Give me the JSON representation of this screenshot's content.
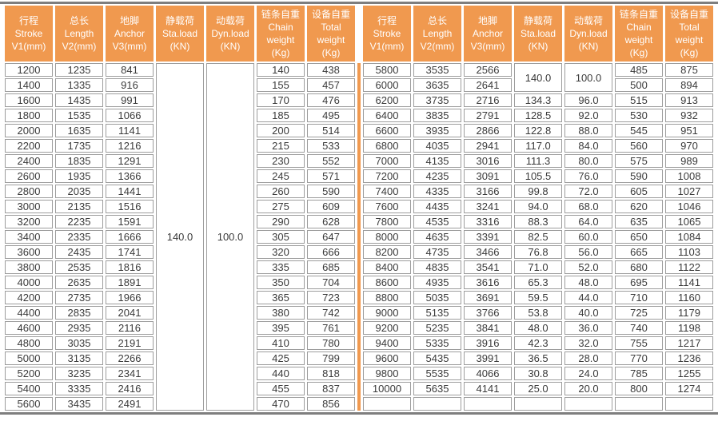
{
  "colors": {
    "header_bg": "#F0994F",
    "divider": "#F0994F",
    "cell_border": "#9D9D9D",
    "rule": "#7E7E7E",
    "cell_text": "#3A3A3A",
    "header_text": "#FFFFFF"
  },
  "headers": [
    {
      "id": "stroke",
      "lines": [
        "行程",
        "Stroke",
        "V1(mm)"
      ]
    },
    {
      "id": "length",
      "lines": [
        "总长",
        "Length",
        "V2(mm)"
      ]
    },
    {
      "id": "anchor",
      "lines": [
        "地脚",
        "Anchor",
        "V3(mm)"
      ]
    },
    {
      "id": "sta-load",
      "lines": [
        "静载荷",
        "Sta.load",
        "(KN)"
      ]
    },
    {
      "id": "dyn-load",
      "lines": [
        "动载荷",
        "Dyn.load",
        "(KN)"
      ]
    },
    {
      "id": "chain-weight",
      "lines": [
        "链条自重",
        "Chain",
        "weight",
        "(Kg)"
      ]
    },
    {
      "id": "total-weight",
      "lines": [
        "设备自重",
        "Total",
        "weight",
        "(Kg)"
      ]
    }
  ],
  "tables": {
    "left": {
      "merges": [
        {
          "row": 0,
          "col": 3,
          "rowspan": 23,
          "value": "140.0"
        },
        {
          "row": 0,
          "col": 4,
          "rowspan": 23,
          "value": "100.0"
        }
      ],
      "rows": [
        [
          "1200",
          "1235",
          "841",
          null,
          null,
          "140",
          "438"
        ],
        [
          "1400",
          "1335",
          "916",
          null,
          null,
          "155",
          "457"
        ],
        [
          "1600",
          "1435",
          "991",
          null,
          null,
          "170",
          "476"
        ],
        [
          "1800",
          "1535",
          "1066",
          null,
          null,
          "185",
          "495"
        ],
        [
          "2000",
          "1635",
          "1141",
          null,
          null,
          "200",
          "514"
        ],
        [
          "2200",
          "1735",
          "1216",
          null,
          null,
          "215",
          "533"
        ],
        [
          "2400",
          "1835",
          "1291",
          null,
          null,
          "230",
          "552"
        ],
        [
          "2600",
          "1935",
          "1366",
          null,
          null,
          "245",
          "571"
        ],
        [
          "2800",
          "2035",
          "1441",
          null,
          null,
          "260",
          "590"
        ],
        [
          "3000",
          "2135",
          "1516",
          null,
          null,
          "275",
          "609"
        ],
        [
          "3200",
          "2235",
          "1591",
          null,
          null,
          "290",
          "628"
        ],
        [
          "3400",
          "2335",
          "1666",
          null,
          null,
          "305",
          "647"
        ],
        [
          "3600",
          "2435",
          "1741",
          null,
          null,
          "320",
          "666"
        ],
        [
          "3800",
          "2535",
          "1816",
          null,
          null,
          "335",
          "685"
        ],
        [
          "4000",
          "2635",
          "1891",
          null,
          null,
          "350",
          "704"
        ],
        [
          "4200",
          "2735",
          "1966",
          null,
          null,
          "365",
          "723"
        ],
        [
          "4400",
          "2835",
          "2041",
          null,
          null,
          "380",
          "742"
        ],
        [
          "4600",
          "2935",
          "2116",
          null,
          null,
          "395",
          "761"
        ],
        [
          "4800",
          "3035",
          "2191",
          null,
          null,
          "410",
          "780"
        ],
        [
          "5000",
          "3135",
          "2266",
          null,
          null,
          "425",
          "799"
        ],
        [
          "5200",
          "3235",
          "2341",
          null,
          null,
          "440",
          "818"
        ],
        [
          "5400",
          "3335",
          "2416",
          null,
          null,
          "455",
          "837"
        ],
        [
          "5600",
          "3435",
          "2491",
          null,
          null,
          "470",
          "856"
        ]
      ]
    },
    "right": {
      "merges": [
        {
          "row": 0,
          "col": 3,
          "rowspan": 2,
          "value": "140.0"
        },
        {
          "row": 0,
          "col": 4,
          "rowspan": 2,
          "value": "100.0"
        }
      ],
      "rows": [
        [
          "5800",
          "3535",
          "2566",
          null,
          null,
          "485",
          "875"
        ],
        [
          "6000",
          "3635",
          "2641",
          null,
          null,
          "500",
          "894"
        ],
        [
          "6200",
          "3735",
          "2716",
          "134.3",
          "96.0",
          "515",
          "913"
        ],
        [
          "6400",
          "3835",
          "2791",
          "128.5",
          "92.0",
          "530",
          "932"
        ],
        [
          "6600",
          "3935",
          "2866",
          "122.8",
          "88.0",
          "545",
          "951"
        ],
        [
          "6800",
          "4035",
          "2941",
          "117.0",
          "84.0",
          "560",
          "970"
        ],
        [
          "7000",
          "4135",
          "3016",
          "111.3",
          "80.0",
          "575",
          "989"
        ],
        [
          "7200",
          "4235",
          "3091",
          "105.5",
          "76.0",
          "590",
          "1008"
        ],
        [
          "7400",
          "4335",
          "3166",
          "99.8",
          "72.0",
          "605",
          "1027"
        ],
        [
          "7600",
          "4435",
          "3241",
          "94.0",
          "68.0",
          "620",
          "1046"
        ],
        [
          "7800",
          "4535",
          "3316",
          "88.3",
          "64.0",
          "635",
          "1065"
        ],
        [
          "8000",
          "4635",
          "3391",
          "82.5",
          "60.0",
          "650",
          "1084"
        ],
        [
          "8200",
          "4735",
          "3466",
          "76.8",
          "56.0",
          "665",
          "1103"
        ],
        [
          "8400",
          "4835",
          "3541",
          "71.0",
          "52.0",
          "680",
          "1122"
        ],
        [
          "8600",
          "4935",
          "3616",
          "65.3",
          "48.0",
          "695",
          "1141"
        ],
        [
          "8800",
          "5035",
          "3691",
          "59.5",
          "44.0",
          "710",
          "1160"
        ],
        [
          "9000",
          "5135",
          "3766",
          "53.8",
          "40.0",
          "725",
          "1179"
        ],
        [
          "9200",
          "5235",
          "3841",
          "48.0",
          "36.0",
          "740",
          "1198"
        ],
        [
          "9400",
          "5335",
          "3916",
          "42.3",
          "32.0",
          "755",
          "1217"
        ],
        [
          "9600",
          "5435",
          "3991",
          "36.5",
          "28.0",
          "770",
          "1236"
        ],
        [
          "9800",
          "5535",
          "4066",
          "30.8",
          "24.0",
          "785",
          "1255"
        ],
        [
          "10000",
          "5635",
          "4141",
          "25.0",
          "20.0",
          "800",
          "1274"
        ],
        [
          "",
          "",
          "",
          "",
          "",
          "",
          ""
        ]
      ]
    }
  }
}
